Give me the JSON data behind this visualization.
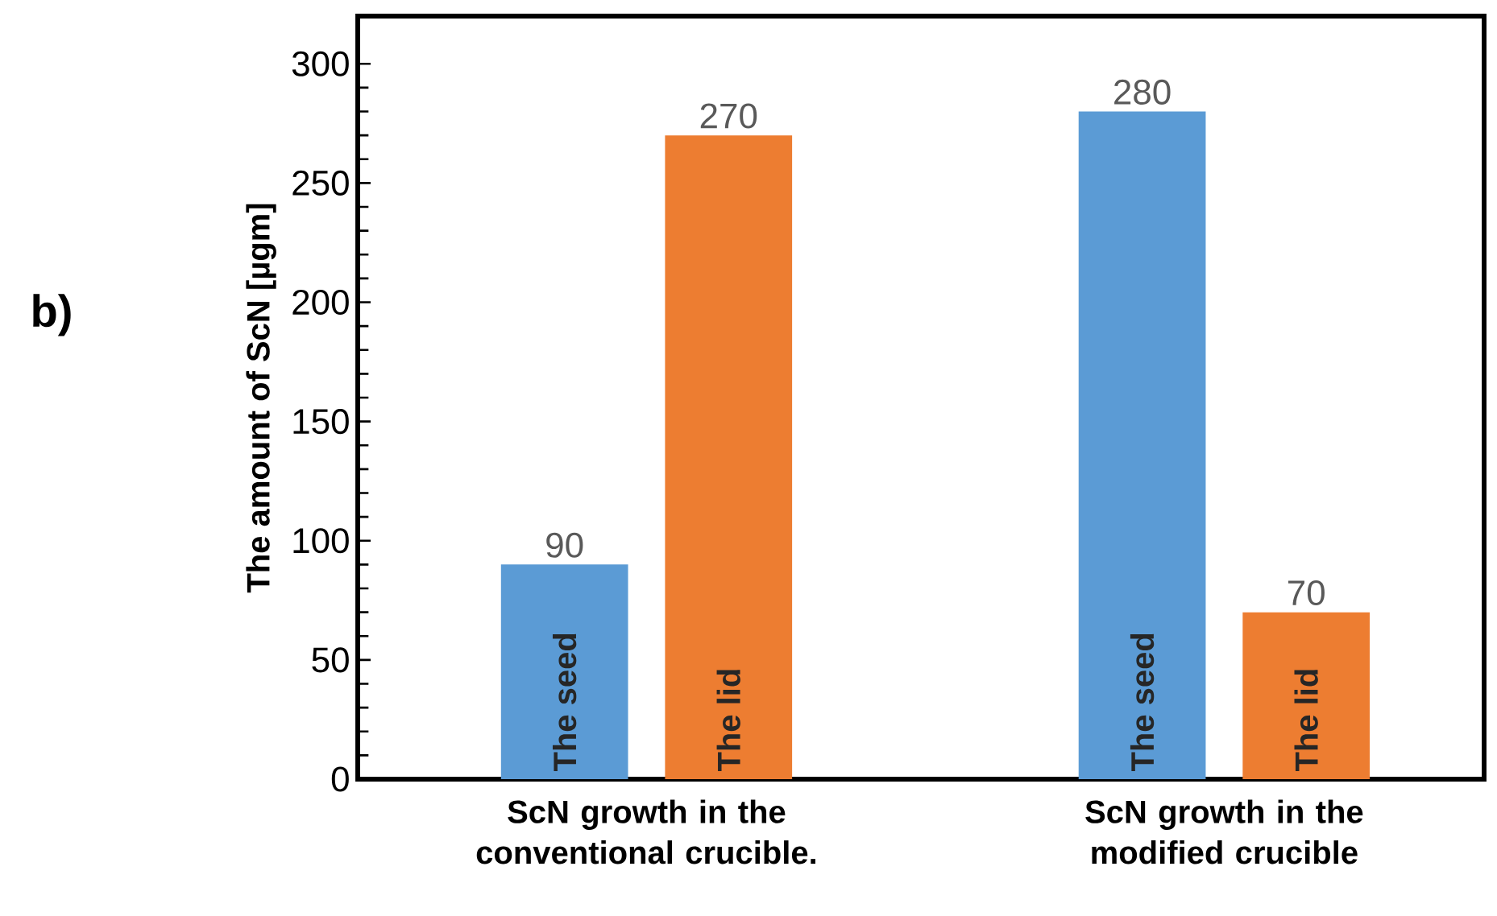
{
  "chart_data": {
    "type": "bar",
    "ylabel": "The amount of ScN [µgm]",
    "categories": [
      "ScN growth in the conventional crucible.",
      "ScN growth in the modified crucible"
    ],
    "series": [
      {
        "name": "The seed",
        "color": "#5b9bd5",
        "values": [
          90,
          280
        ]
      },
      {
        "name": "The lid",
        "color": "#ed7d31",
        "values": [
          270,
          70
        ]
      }
    ],
    "ylim": [
      0,
      320
    ],
    "yticks": [
      0,
      50,
      100,
      150,
      200,
      250,
      300
    ],
    "data_labels": true,
    "grid": false,
    "annotations": [
      "b)"
    ]
  }
}
